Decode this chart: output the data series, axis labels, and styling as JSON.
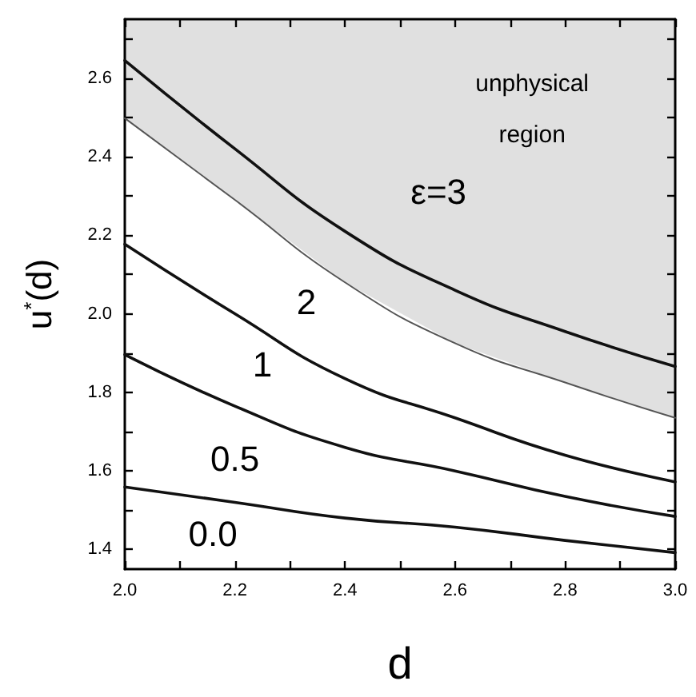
{
  "chart_data": {
    "type": "line",
    "xlabel": "d",
    "ylabel": "u$^{*}$(d)",
    "x": [
      2.0,
      2.2,
      2.4,
      2.6,
      2.8,
      3.0
    ],
    "series": [
      {
        "name": "2",
        "color": "#555555",
        "values": [
          2.498,
          2.29,
          2.08,
          1.925,
          1.825,
          1.735
        ],
        "lower": [
          2.498,
          2.29,
          2.08,
          1.925,
          1.825,
          1.735
        ],
        "upper": [
          2.75,
          2.75,
          2.75,
          2.75,
          2.75,
          2.75
        ]
      },
      {
        "name": "ε=3",
        "color": "#111111",
        "values": [
          2.645,
          2.42,
          2.21,
          2.06,
          1.955,
          1.866
        ]
      },
      {
        "name": "1",
        "color": "#111111",
        "values": [
          2.177,
          2.0,
          1.835,
          1.735,
          1.64,
          1.572
        ]
      },
      {
        "name": "0.5",
        "color": "#111111",
        "values": [
          1.896,
          1.765,
          1.66,
          1.6,
          1.535,
          1.484
        ]
      },
      {
        "name": "0.0",
        "color": "#111111",
        "values": [
          1.559,
          1.52,
          1.48,
          1.457,
          1.423,
          1.392
        ]
      }
    ],
    "annotations": [
      "unphysical region"
    ],
    "xlim": [
      2.0,
      3.0
    ],
    "xticks": [
      {
        "value": 2.0,
        "label": "2.0"
      },
      {
        "value": 2.1,
        "label": null
      },
      {
        "value": 2.2,
        "label": "2.2"
      },
      {
        "value": 2.3,
        "label": null
      },
      {
        "value": 2.4,
        "label": "2.4"
      },
      {
        "value": 2.5,
        "label": null
      },
      {
        "value": 2.6,
        "label": "2.6"
      },
      {
        "value": 2.7,
        "label": null
      },
      {
        "value": 2.8,
        "label": "2.8"
      },
      {
        "value": 2.9,
        "label": null
      },
      {
        "value": 3.0,
        "label": "3.0"
      }
    ],
    "ylim": [
      1.35,
      2.75
    ],
    "yticks": [
      1.4,
      {
        "value": 1.5,
        "label": null
      },
      1.6,
      {
        "value": 1.7,
        "label": null
      },
      1.8,
      {
        "value": 1.9,
        "label": null
      },
      {
        "value": 2.0,
        "label": "2.0"
      },
      {
        "value": 2.1,
        "label": null
      },
      2.2,
      {
        "value": 2.3,
        "label": null
      },
      2.4,
      {
        "value": 2.5,
        "label": null
      },
      2.6,
      {
        "value": 2.7,
        "label": null
      }
    ],
    "grid": false,
    "legend": false,
    "marker": "none",
    "line_style": "solid"
  }
}
